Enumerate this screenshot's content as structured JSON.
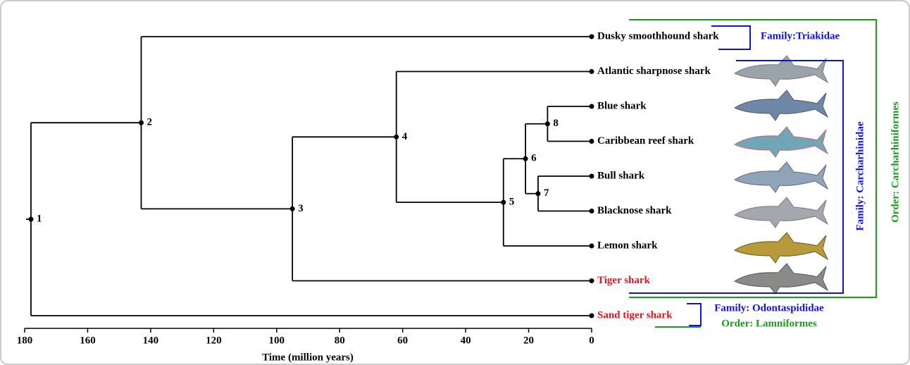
{
  "chart_data": {
    "type": "dendrogram",
    "xlabel": "Time (million years)",
    "xlim": [
      180,
      0
    ],
    "xticks": [
      180,
      160,
      140,
      120,
      100,
      80,
      60,
      40,
      20,
      0
    ],
    "line_color": "#000000",
    "tree": {
      "label": "1",
      "age": 178,
      "children": [
        {
          "label": "2",
          "age": 143,
          "children": [
            {
              "name": "Dusky smoothhound shark",
              "age": 0
            },
            {
              "label": "3",
              "age": 95,
              "children": [
                {
                  "label": "4",
                  "age": 62,
                  "children": [
                    {
                      "name": "Atlantic sharpnose shark",
                      "age": 0
                    },
                    {
                      "label": "5",
                      "age": 28,
                      "children": [
                        {
                          "label": "6",
                          "age": 21,
                          "children": [
                            {
                              "label": "8",
                              "age": 14,
                              "children": [
                                {
                                  "name": "Blue shark",
                                  "age": 0
                                },
                                {
                                  "name": "Caribbean reef shark",
                                  "age": 0
                                }
                              ]
                            },
                            {
                              "label": "7",
                              "age": 17,
                              "children": [
                                {
                                  "name": "Bull shark",
                                  "age": 0
                                },
                                {
                                  "name": "Blacknose shark",
                                  "age": 0
                                }
                              ]
                            }
                          ]
                        },
                        {
                          "name": "Lemon shark",
                          "age": 0
                        }
                      ]
                    }
                  ]
                },
                {
                  "name": "Tiger shark",
                  "age": 0,
                  "color": "#e8141b"
                }
              ]
            }
          ]
        },
        {
          "name": "Sand tiger shark",
          "age": 0,
          "color": "#e8141b"
        }
      ]
    },
    "annotations": [
      {
        "text": "Family:Triakidae",
        "color": "#1010e0"
      },
      {
        "text": "Family: Carcharhinidae",
        "color": "#1010e0"
      },
      {
        "text": "Order: Carcharhiniformes",
        "color": "#1a9a1a"
      },
      {
        "text": "Family: Odontaspididae",
        "color": "#1010e0"
      },
      {
        "text": "Order: Lamniformes",
        "color": "#1a9a1a"
      }
    ]
  }
}
